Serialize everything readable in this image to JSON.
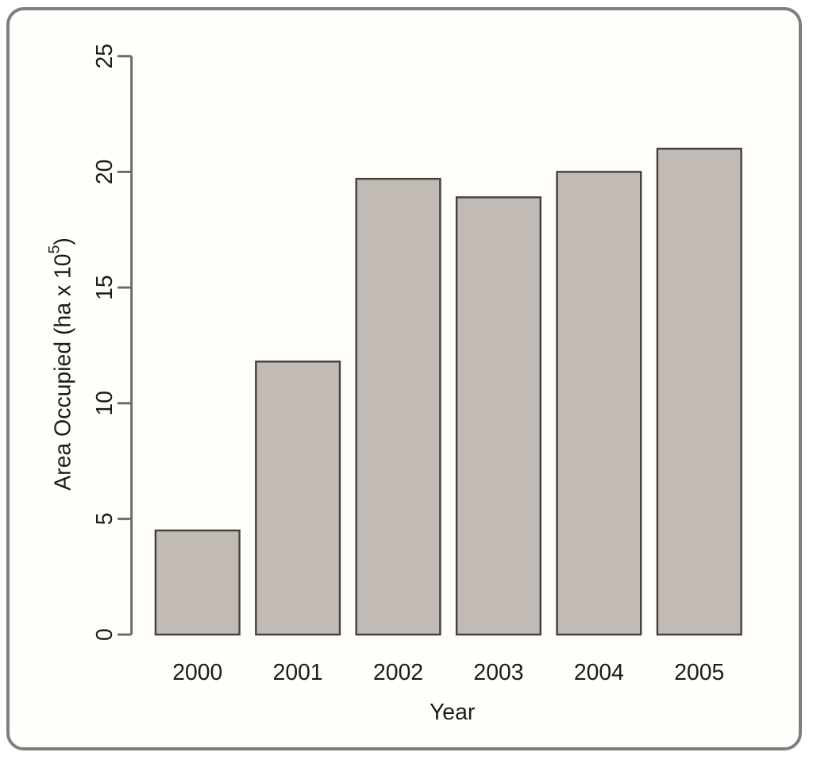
{
  "chart_data": {
    "type": "bar",
    "categories": [
      "2000",
      "2001",
      "2002",
      "2003",
      "2004",
      "2005"
    ],
    "values": [
      4.5,
      11.8,
      19.7,
      18.9,
      20.0,
      21.0
    ],
    "title": "",
    "xlabel": "Year",
    "ylabel": "Area Occupied (ha x 10⁵)",
    "ylabel_parts": {
      "main": "Area Occupied  (ha x 10",
      "sup": "5",
      "close": ")"
    },
    "yticks": [
      0,
      5,
      10,
      15,
      20,
      25
    ],
    "ylim": [
      0,
      25
    ],
    "legend": "none",
    "grid": "off",
    "colors": {
      "bar_fill": "#c2bab4",
      "bar_stroke": "#45423e",
      "axis": "#6a6a6a",
      "text": "#1c1c1c",
      "background": "#fffefa",
      "frame_border": "#7f7f7f"
    }
  }
}
